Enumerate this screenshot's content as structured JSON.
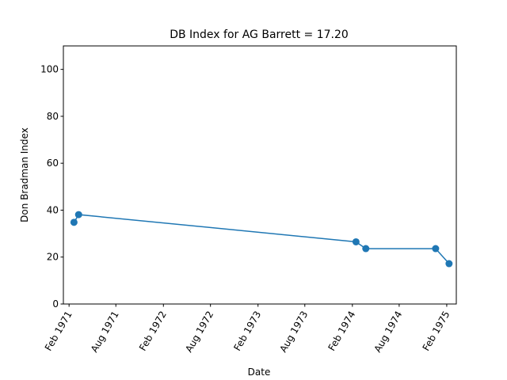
{
  "chart_data": {
    "type": "line",
    "title": "DB Index for AG Barrett = 17.20",
    "xlabel": "Date",
    "ylabel": "Don Bradman Index",
    "x_tick_labels": [
      "Feb 1971",
      "Aug 1971",
      "Feb 1972",
      "Aug 1972",
      "Feb 1973",
      "Aug 1973",
      "Feb 1974",
      "Aug 1974",
      "Feb 1975"
    ],
    "x_tick_dates": [
      "1971-02-01",
      "1971-08-01",
      "1972-02-01",
      "1972-08-01",
      "1973-02-01",
      "1973-08-01",
      "1974-02-01",
      "1974-08-01",
      "1975-02-01"
    ],
    "xlim": [
      "1971-01-10",
      "1975-03-10"
    ],
    "y_ticks": [
      0,
      20,
      40,
      60,
      80,
      100
    ],
    "ylim": [
      0,
      110
    ],
    "grid": false,
    "series": [
      {
        "color": "#1f77b4",
        "x": [
          "1971-02-20",
          "1971-03-10",
          "1974-02-15",
          "1974-03-25",
          "1974-12-20",
          "1975-02-10"
        ],
        "y": [
          34.8,
          38.1,
          26.5,
          23.6,
          23.6,
          17.2
        ]
      }
    ]
  }
}
